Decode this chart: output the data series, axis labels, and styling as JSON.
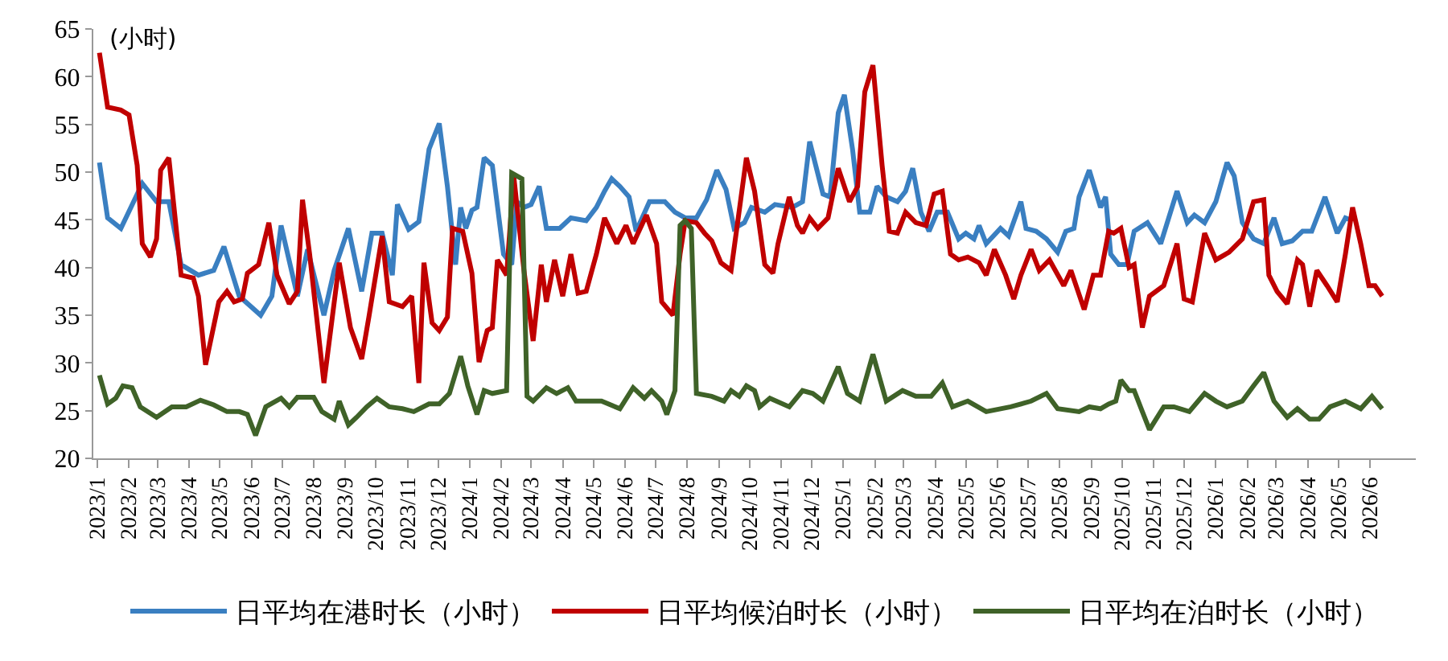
{
  "chart_data": {
    "type": "line",
    "ylabel": "(小时)",
    "legend": "bottom",
    "grid": false,
    "marker": "none",
    "line_style": "solid",
    "xlim": [
      "2022-12-28",
      "2026-07-16"
    ],
    "ylim": [
      20,
      65
    ],
    "yticks": [
      20,
      25,
      30,
      35,
      40,
      45,
      50,
      55,
      60,
      65
    ],
    "xticks": [
      {
        "value": "2023-01-01",
        "label": "2023/1"
      },
      {
        "value": "2023-02-01",
        "label": "2023/2"
      },
      {
        "value": "2023-03-01",
        "label": "2023/3"
      },
      {
        "value": "2023-04-01",
        "label": "2023/4"
      },
      {
        "value": "2023-05-01",
        "label": "2023/5"
      },
      {
        "value": "2023-06-01",
        "label": "2023/6"
      },
      {
        "value": "2023-07-01",
        "label": "2023/7"
      },
      {
        "value": "2023-08-01",
        "label": "2023/8"
      },
      {
        "value": "2023-09-01",
        "label": "2023/9"
      },
      {
        "value": "2023-10-01",
        "label": "2023/10"
      },
      {
        "value": "2023-11-01",
        "label": "2023/11"
      },
      {
        "value": "2023-12-01",
        "label": "2023/12"
      },
      {
        "value": "2024-01-01",
        "label": "2024/1"
      },
      {
        "value": "2024-02-01",
        "label": "2024/2"
      },
      {
        "value": "2024-03-01",
        "label": "2024/3"
      },
      {
        "value": "2024-04-01",
        "label": "2024/4"
      },
      {
        "value": "2024-05-01",
        "label": "2024/5"
      },
      {
        "value": "2024-06-01",
        "label": "2024/6"
      },
      {
        "value": "2024-07-01",
        "label": "2024/7"
      },
      {
        "value": "2024-08-01",
        "label": "2024/8"
      },
      {
        "value": "2024-09-01",
        "label": "2024/9"
      },
      {
        "value": "2024-10-01",
        "label": "2024/10"
      },
      {
        "value": "2024-11-01",
        "label": "2024/11"
      },
      {
        "value": "2024-12-01",
        "label": "2024/12"
      },
      {
        "value": "2025-01-01",
        "label": "2025/1"
      },
      {
        "value": "2025-02-01",
        "label": "2025/2"
      },
      {
        "value": "2025-03-01",
        "label": "2025/3"
      },
      {
        "value": "2025-04-01",
        "label": "2025/4"
      },
      {
        "value": "2025-05-01",
        "label": "2025/5"
      },
      {
        "value": "2025-06-01",
        "label": "2025/6"
      },
      {
        "value": "2025-07-01",
        "label": "2025/7"
      },
      {
        "value": "2025-08-01",
        "label": "2025/8"
      },
      {
        "value": "2025-09-01",
        "label": "2025/9"
      },
      {
        "value": "2025-10-01",
        "label": "2025/10"
      },
      {
        "value": "2025-11-01",
        "label": "2025/11"
      },
      {
        "value": "2025-12-01",
        "label": "2025/12"
      },
      {
        "value": "2026-01-01",
        "label": "2026/1"
      },
      {
        "value": "2026-02-01",
        "label": "2026/2"
      },
      {
        "value": "2026-03-01",
        "label": "2026/3"
      },
      {
        "value": "2026-04-01",
        "label": "2026/4"
      },
      {
        "value": "2026-05-01",
        "label": "2026/5"
      },
      {
        "value": "2026-06-01",
        "label": "2026/6"
      }
    ],
    "series": [
      {
        "name": "日平均在港时长（小时）",
        "color": "#3a7fc1",
        "x": [
          "2023-01-03",
          "2023-01-11",
          "2023-01-24",
          "2023-02-14",
          "2023-02-28",
          "2023-03-12",
          "2023-03-24",
          "2023-04-10",
          "2023-04-25",
          "2023-05-05",
          "2023-05-20",
          "2023-06-10",
          "2023-06-21",
          "2023-06-30",
          "2023-07-16",
          "2023-07-26",
          "2023-08-11",
          "2023-08-21",
          "2023-09-04",
          "2023-09-17",
          "2023-09-27",
          "2023-10-07",
          "2023-10-17",
          "2023-10-22",
          "2023-11-02",
          "2023-11-12",
          "2023-11-22",
          "2023-12-02",
          "2023-12-10",
          "2023-12-18",
          "2023-12-23",
          "2023-12-28",
          "2024-01-03",
          "2024-01-08",
          "2024-01-15",
          "2024-01-23",
          "2024-02-03",
          "2024-02-11",
          "2024-02-16",
          "2024-02-23",
          "2024-03-01",
          "2024-03-09",
          "2024-03-16",
          "2024-03-29",
          "2024-04-09",
          "2024-04-24",
          "2024-05-04",
          "2024-05-12",
          "2024-05-19",
          "2024-05-27",
          "2024-06-05",
          "2024-06-12",
          "2024-06-25",
          "2024-07-10",
          "2024-07-20",
          "2024-07-30",
          "2024-08-10",
          "2024-08-20",
          "2024-08-30",
          "2024-09-08",
          "2024-09-16",
          "2024-09-26",
          "2024-10-03",
          "2024-10-16",
          "2024-10-26",
          "2024-11-12",
          "2024-11-22",
          "2024-11-29",
          "2024-12-12",
          "2024-12-19",
          "2024-12-27",
          "2025-01-02",
          "2025-01-10",
          "2025-01-17",
          "2025-01-27",
          "2025-02-03",
          "2025-02-12",
          "2025-02-23",
          "2025-03-03",
          "2025-03-10",
          "2025-03-18",
          "2025-03-26",
          "2025-04-03",
          "2025-04-13",
          "2025-04-24",
          "2025-05-01",
          "2025-05-09",
          "2025-05-14",
          "2025-05-21",
          "2025-06-04",
          "2025-06-12",
          "2025-06-24",
          "2025-06-29",
          "2025-07-09",
          "2025-07-19",
          "2025-07-30",
          "2025-08-07",
          "2025-08-15",
          "2025-08-20",
          "2025-08-30",
          "2025-09-10",
          "2025-09-15",
          "2025-09-20",
          "2025-09-28",
          "2025-10-06",
          "2025-10-13",
          "2025-10-26",
          "2025-11-08",
          "2025-11-24",
          "2025-12-04",
          "2025-12-11",
          "2025-12-21",
          "2026-01-01",
          "2026-01-12",
          "2026-01-19",
          "2026-01-27",
          "2026-02-07",
          "2026-02-17",
          "2026-02-27",
          "2026-03-07",
          "2026-03-17",
          "2026-03-27",
          "2026-04-05",
          "2026-04-18",
          "2026-04-30",
          "2026-05-08",
          "2026-05-15"
        ],
        "values": [
          51.0,
          45.2,
          44.1,
          48.8,
          46.9,
          46.9,
          40.3,
          39.2,
          39.7,
          42.2,
          37.0,
          35.0,
          37.0,
          44.4,
          37.0,
          41.9,
          35.0,
          39.7,
          44.1,
          37.5,
          43.6,
          43.6,
          39.2,
          46.6,
          44.0,
          44.8,
          52.4,
          55.1,
          48.5,
          40.3,
          46.3,
          44.1,
          46.0,
          46.3,
          51.5,
          50.7,
          41.4,
          40.3,
          46.9,
          46.3,
          46.6,
          48.5,
          44.1,
          44.1,
          45.2,
          44.9,
          46.3,
          48.0,
          49.3,
          48.5,
          47.4,
          43.8,
          46.9,
          46.9,
          45.8,
          45.2,
          45.2,
          47.1,
          50.2,
          48.2,
          44.1,
          44.7,
          46.3,
          45.8,
          46.6,
          46.3,
          46.9,
          53.2,
          47.7,
          47.4,
          56.2,
          58.1,
          52.4,
          45.8,
          45.8,
          48.5,
          47.4,
          46.9,
          48.0,
          50.4,
          45.8,
          43.8,
          45.8,
          45.8,
          43.0,
          43.6,
          43.0,
          44.4,
          42.5,
          44.1,
          43.3,
          46.9,
          44.1,
          43.8,
          43.0,
          41.6,
          43.8,
          44.1,
          47.4,
          50.2,
          46.3,
          47.4,
          41.4,
          40.3,
          40.3,
          43.8,
          44.7,
          42.5,
          48.0,
          44.7,
          45.5,
          44.7,
          46.9,
          51.0,
          49.6,
          44.7,
          43.0,
          42.5,
          45.2,
          42.5,
          42.8,
          43.8,
          43.8,
          47.4,
          43.6,
          45.2,
          44.9
        ]
      },
      {
        "name": "日平均候泊时长（小时）",
        "color": "#c00000",
        "x": [
          "2023-01-03",
          "2023-01-11",
          "2023-01-24",
          "2023-02-01",
          "2023-02-09",
          "2023-02-14",
          "2023-02-22",
          "2023-02-28",
          "2023-03-04",
          "2023-03-12",
          "2023-03-24",
          "2023-04-05",
          "2023-04-10",
          "2023-04-17",
          "2023-04-30",
          "2023-05-08",
          "2023-05-15",
          "2023-05-23",
          "2023-05-28",
          "2023-06-08",
          "2023-06-18",
          "2023-06-26",
          "2023-07-08",
          "2023-07-16",
          "2023-07-21",
          "2023-07-28",
          "2023-08-11",
          "2023-08-26",
          "2023-09-06",
          "2023-09-17",
          "2023-09-24",
          "2023-10-07",
          "2023-10-14",
          "2023-10-27",
          "2023-11-05",
          "2023-11-12",
          "2023-11-17",
          "2023-11-25",
          "2023-12-02",
          "2023-12-10",
          "2023-12-15",
          "2023-12-25",
          "2024-01-03",
          "2024-01-10",
          "2024-01-18",
          "2024-01-23",
          "2024-01-28",
          "2024-02-06",
          "2024-02-13",
          "2024-02-23",
          "2024-03-03",
          "2024-03-11",
          "2024-03-16",
          "2024-03-24",
          "2024-04-01",
          "2024-04-09",
          "2024-04-16",
          "2024-04-24",
          "2024-05-04",
          "2024-05-12",
          "2024-05-24",
          "2024-06-02",
          "2024-06-09",
          "2024-06-22",
          "2024-07-02",
          "2024-07-07",
          "2024-07-18",
          "2024-07-25",
          "2024-07-30",
          "2024-08-10",
          "2024-08-18",
          "2024-08-25",
          "2024-09-03",
          "2024-09-13",
          "2024-09-28",
          "2024-10-06",
          "2024-10-16",
          "2024-10-24",
          "2024-10-29",
          "2024-11-09",
          "2024-11-17",
          "2024-11-22",
          "2024-11-29",
          "2024-12-07",
          "2024-12-17",
          "2024-12-27",
          "2025-01-07",
          "2025-01-15",
          "2025-01-22",
          "2025-01-30",
          "2025-02-08",
          "2025-02-15",
          "2025-02-23",
          "2025-03-03",
          "2025-03-13",
          "2025-03-23",
          "2025-03-31",
          "2025-04-08",
          "2025-04-16",
          "2025-04-24",
          "2025-05-03",
          "2025-05-14",
          "2025-05-21",
          "2025-05-29",
          "2025-06-09",
          "2025-06-17",
          "2025-06-24",
          "2025-07-04",
          "2025-07-12",
          "2025-07-22",
          "2025-08-05",
          "2025-08-12",
          "2025-08-25",
          "2025-09-03",
          "2025-09-10",
          "2025-09-18",
          "2025-09-23",
          "2025-09-30",
          "2025-10-08",
          "2025-10-13",
          "2025-10-21",
          "2025-10-28",
          "2025-11-11",
          "2025-11-24",
          "2025-12-01",
          "2025-12-09",
          "2025-12-21",
          "2026-01-01",
          "2026-01-14",
          "2026-01-27",
          "2026-02-07",
          "2026-02-17",
          "2026-02-22",
          "2026-03-02",
          "2026-03-12",
          "2026-03-22",
          "2026-03-27",
          "2026-04-03",
          "2026-04-10",
          "2026-04-20",
          "2026-04-30",
          "2026-05-08",
          "2026-05-15",
          "2026-05-23",
          "2026-05-31",
          "2026-06-06",
          "2026-06-13"
        ],
        "values": [
          62.5,
          56.8,
          56.5,
          56.0,
          50.7,
          42.5,
          41.1,
          43.0,
          50.2,
          51.5,
          39.2,
          38.9,
          37.0,
          29.8,
          36.4,
          37.5,
          36.4,
          36.7,
          39.4,
          40.3,
          44.7,
          39.2,
          36.2,
          37.5,
          47.1,
          41.4,
          27.9,
          40.5,
          33.7,
          30.4,
          34.8,
          43.3,
          36.4,
          35.9,
          37.0,
          27.9,
          40.5,
          34.2,
          33.4,
          34.8,
          44.1,
          43.8,
          39.4,
          30.1,
          33.4,
          33.7,
          40.8,
          39.2,
          49.6,
          39.7,
          32.3,
          40.3,
          36.4,
          40.8,
          37.0,
          41.4,
          37.3,
          37.5,
          41.4,
          45.2,
          42.5,
          44.4,
          42.5,
          45.5,
          42.5,
          36.4,
          35.0,
          41.4,
          44.9,
          44.7,
          43.6,
          42.8,
          40.5,
          39.7,
          51.5,
          48.0,
          40.3,
          39.4,
          42.5,
          47.4,
          44.4,
          43.6,
          45.2,
          44.1,
          45.2,
          50.4,
          46.9,
          48.5,
          58.4,
          61.2,
          50.7,
          43.8,
          43.6,
          45.8,
          44.7,
          44.4,
          47.7,
          48.0,
          41.4,
          40.8,
          41.1,
          40.5,
          39.2,
          41.9,
          39.2,
          36.7,
          39.2,
          41.9,
          39.7,
          40.8,
          38.1,
          39.7,
          35.6,
          39.2,
          39.2,
          43.8,
          43.6,
          44.1,
          40.0,
          40.3,
          33.7,
          37.0,
          38.1,
          42.5,
          36.7,
          36.4,
          43.6,
          40.8,
          41.6,
          43.0,
          46.9,
          47.1,
          39.2,
          37.5,
          36.2,
          40.8,
          40.3,
          35.9,
          39.7,
          38.1,
          36.4,
          41.4,
          46.3,
          42.5,
          38.1,
          38.1,
          37.0
        ]
      },
      {
        "name": "日平均在泊时长（小时）",
        "color": "#3f6228",
        "x": [
          "2023-01-03",
          "2023-01-11",
          "2023-01-19",
          "2023-01-26",
          "2023-02-04",
          "2023-02-12",
          "2023-02-28",
          "2023-03-15",
          "2023-03-29",
          "2023-04-12",
          "2023-04-25",
          "2023-05-08",
          "2023-05-20",
          "2023-05-28",
          "2023-06-05",
          "2023-06-15",
          "2023-06-30",
          "2023-07-08",
          "2023-07-16",
          "2023-08-01",
          "2023-08-09",
          "2023-08-21",
          "2023-08-26",
          "2023-09-04",
          "2023-09-12",
          "2023-09-22",
          "2023-10-02",
          "2023-10-14",
          "2023-10-27",
          "2023-11-07",
          "2023-11-22",
          "2023-12-02",
          "2023-12-12",
          "2023-12-23",
          "2023-12-30",
          "2024-01-08",
          "2024-01-15",
          "2024-01-23",
          "2024-02-06",
          "2024-02-11",
          "2024-02-21",
          "2024-02-26",
          "2024-03-03",
          "2024-03-16",
          "2024-03-26",
          "2024-04-06",
          "2024-04-14",
          "2024-04-29",
          "2024-05-09",
          "2024-05-27",
          "2024-06-09",
          "2024-06-20",
          "2024-06-27",
          "2024-07-07",
          "2024-07-12",
          "2024-07-20",
          "2024-07-25",
          "2024-07-30",
          "2024-08-05",
          "2024-08-10",
          "2024-08-25",
          "2024-09-06",
          "2024-09-13",
          "2024-09-21",
          "2024-09-28",
          "2024-10-06",
          "2024-10-11",
          "2024-10-21",
          "2024-11-09",
          "2024-11-22",
          "2024-12-02",
          "2024-12-12",
          "2024-12-27",
          "2025-01-05",
          "2025-01-17",
          "2025-01-30",
          "2025-02-12",
          "2025-02-28",
          "2025-03-13",
          "2025-03-28",
          "2025-04-08",
          "2025-04-18",
          "2025-05-03",
          "2025-05-21",
          "2025-06-14",
          "2025-07-04",
          "2025-07-19",
          "2025-07-30",
          "2025-08-20",
          "2025-08-30",
          "2025-09-10",
          "2025-09-18",
          "2025-09-25",
          "2025-09-30",
          "2025-10-08",
          "2025-10-13",
          "2025-10-21",
          "2025-10-28",
          "2025-11-11",
          "2025-11-21",
          "2025-12-06",
          "2025-12-21",
          "2026-01-01",
          "2026-01-12",
          "2026-01-27",
          "2026-02-07",
          "2026-02-17",
          "2026-02-27",
          "2026-03-12",
          "2026-03-22",
          "2026-04-03",
          "2026-04-12",
          "2026-04-23",
          "2026-05-08",
          "2026-05-23",
          "2026-06-03",
          "2026-06-13"
        ],
        "values": [
          28.7,
          25.7,
          26.3,
          27.6,
          27.4,
          25.4,
          24.3,
          25.4,
          25.4,
          26.1,
          25.6,
          24.9,
          24.9,
          24.6,
          22.4,
          25.4,
          26.3,
          25.4,
          26.4,
          26.4,
          24.9,
          24.1,
          26.0,
          23.5,
          24.3,
          25.4,
          26.3,
          25.4,
          25.2,
          24.9,
          25.7,
          25.7,
          26.8,
          30.7,
          27.6,
          24.6,
          27.1,
          26.8,
          27.1,
          49.9,
          49.3,
          26.5,
          26.0,
          27.4,
          26.8,
          27.4,
          26.0,
          26.0,
          26.0,
          25.2,
          27.4,
          26.3,
          27.1,
          26.0,
          24.6,
          27.1,
          44.4,
          44.9,
          44.1,
          26.8,
          26.5,
          26.0,
          27.1,
          26.5,
          27.6,
          27.1,
          25.4,
          26.3,
          25.4,
          27.1,
          26.8,
          26.0,
          29.6,
          26.8,
          26.0,
          30.9,
          26.0,
          27.1,
          26.5,
          26.5,
          27.9,
          25.4,
          26.0,
          24.9,
          25.4,
          26.0,
          26.8,
          25.2,
          24.9,
          25.4,
          25.2,
          25.7,
          26.0,
          28.2,
          27.1,
          27.1,
          24.9,
          23.0,
          25.4,
          25.4,
          24.9,
          26.8,
          26.0,
          25.4,
          26.0,
          27.6,
          29.0,
          26.0,
          24.3,
          25.2,
          24.1,
          24.1,
          25.4,
          26.0,
          25.2,
          26.5,
          25.2
        ]
      }
    ]
  }
}
